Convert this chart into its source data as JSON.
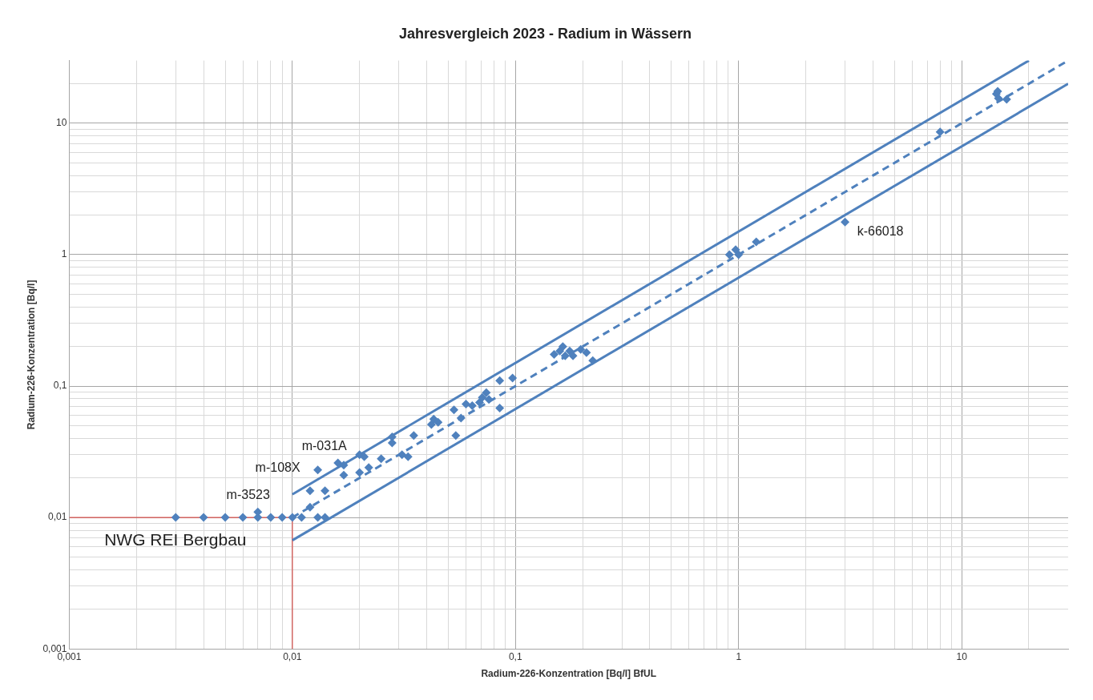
{
  "chart_data": {
    "type": "scatter",
    "title": "Jahresvergleich 2023 - Radium in Wässern",
    "xlabel": "Radium-226-Konzentration [Bq/l] BfUL",
    "ylabel": "Radium-226-Konzentration [Bq/l]",
    "log": "xy",
    "grid": true,
    "legend": false,
    "marker": "diamond",
    "xlim": [
      0.001,
      30
    ],
    "ylim": [
      0.001,
      30
    ],
    "xticks": [
      {
        "value": 0.001,
        "label": "0,001"
      },
      {
        "value": 0.002,
        "label": null
      },
      {
        "value": 0.003,
        "label": null
      },
      {
        "value": 0.004,
        "label": null
      },
      {
        "value": 0.005,
        "label": null
      },
      {
        "value": 0.006,
        "label": null
      },
      {
        "value": 0.007,
        "label": null
      },
      {
        "value": 0.008,
        "label": null
      },
      {
        "value": 0.009,
        "label": null
      },
      {
        "value": 0.01,
        "label": "0,01"
      },
      {
        "value": 0.02,
        "label": null
      },
      {
        "value": 0.03,
        "label": null
      },
      {
        "value": 0.04,
        "label": null
      },
      {
        "value": 0.05,
        "label": null
      },
      {
        "value": 0.06,
        "label": null
      },
      {
        "value": 0.07,
        "label": null
      },
      {
        "value": 0.08,
        "label": null
      },
      {
        "value": 0.09,
        "label": null
      },
      {
        "value": 0.1,
        "label": "0,1"
      },
      {
        "value": 0.2,
        "label": null
      },
      {
        "value": 0.3,
        "label": null
      },
      {
        "value": 0.4,
        "label": null
      },
      {
        "value": 0.5,
        "label": null
      },
      {
        "value": 0.6,
        "label": null
      },
      {
        "value": 0.7,
        "label": null
      },
      {
        "value": 0.8,
        "label": null
      },
      {
        "value": 0.9,
        "label": null
      },
      1,
      {
        "value": 2,
        "label": null
      },
      {
        "value": 3,
        "label": null
      },
      {
        "value": 4,
        "label": null
      },
      {
        "value": 5,
        "label": null
      },
      {
        "value": 6,
        "label": null
      },
      {
        "value": 7,
        "label": null
      },
      {
        "value": 8,
        "label": null
      },
      {
        "value": 9,
        "label": null
      },
      10,
      {
        "value": 20,
        "label": null
      }
    ],
    "yticks": [
      {
        "value": 0.001,
        "label": "0,001"
      },
      {
        "value": 0.002,
        "label": null
      },
      {
        "value": 0.003,
        "label": null
      },
      {
        "value": 0.004,
        "label": null
      },
      {
        "value": 0.005,
        "label": null
      },
      {
        "value": 0.006,
        "label": null
      },
      {
        "value": 0.007,
        "label": null
      },
      {
        "value": 0.008,
        "label": null
      },
      {
        "value": 0.009,
        "label": null
      },
      {
        "value": 0.01,
        "label": "0,01"
      },
      {
        "value": 0.02,
        "label": null
      },
      {
        "value": 0.03,
        "label": null
      },
      {
        "value": 0.04,
        "label": null
      },
      {
        "value": 0.05,
        "label": null
      },
      {
        "value": 0.06,
        "label": null
      },
      {
        "value": 0.07,
        "label": null
      },
      {
        "value": 0.08,
        "label": null
      },
      {
        "value": 0.09,
        "label": null
      },
      {
        "value": 0.1,
        "label": "0,1"
      },
      {
        "value": 0.2,
        "label": null
      },
      {
        "value": 0.3,
        "label": null
      },
      {
        "value": 0.4,
        "label": null
      },
      {
        "value": 0.5,
        "label": null
      },
      {
        "value": 0.6,
        "label": null
      },
      {
        "value": 0.7,
        "label": null
      },
      {
        "value": 0.8,
        "label": null
      },
      {
        "value": 0.9,
        "label": null
      },
      1,
      {
        "value": 2,
        "label": null
      },
      {
        "value": 3,
        "label": null
      },
      {
        "value": 4,
        "label": null
      },
      {
        "value": 5,
        "label": null
      },
      {
        "value": 6,
        "label": null
      },
      {
        "value": 7,
        "label": null
      },
      {
        "value": 8,
        "label": null
      },
      {
        "value": 9,
        "label": null
      },
      10,
      {
        "value": 20,
        "label": null
      }
    ],
    "series": [
      {
        "type": "scatter",
        "color": "#4f81bd",
        "x": [
          0.003,
          0.004,
          0.005,
          0.006,
          0.007,
          0.007,
          0.008,
          0.009,
          0.01,
          0.011,
          0.013,
          0.014,
          0.013,
          0.016,
          0.012,
          0.012,
          0.014,
          0.017,
          0.017,
          0.02,
          0.02,
          0.021,
          0.022,
          0.025,
          0.028,
          0.028,
          0.031,
          0.033,
          0.035,
          0.042,
          0.043,
          0.045,
          0.053,
          0.054,
          0.057,
          0.06,
          0.064,
          0.069,
          0.071,
          0.074,
          0.076,
          0.085,
          0.085,
          0.097,
          0.149,
          0.158,
          0.163,
          0.167,
          0.175,
          0.181,
          0.196,
          0.208,
          0.222,
          0.91,
          0.97,
          1.0,
          1.2,
          3.0,
          8.0,
          14.3,
          14.6,
          15.9,
          14.5
        ],
        "values": [
          0.01,
          0.01,
          0.01,
          0.01,
          0.01,
          0.011,
          0.01,
          0.01,
          0.01,
          0.01,
          0.01,
          0.01,
          0.023,
          0.026,
          0.016,
          0.012,
          0.016,
          0.021,
          0.025,
          0.03,
          0.022,
          0.029,
          0.024,
          0.028,
          0.037,
          0.041,
          0.03,
          0.029,
          0.042,
          0.051,
          0.056,
          0.053,
          0.066,
          0.042,
          0.057,
          0.073,
          0.071,
          0.075,
          0.082,
          0.089,
          0.079,
          0.11,
          0.068,
          0.115,
          0.174,
          0.185,
          0.2,
          0.17,
          0.185,
          0.17,
          0.19,
          0.18,
          0.156,
          1.0,
          1.09,
          1.0,
          1.25,
          1.77,
          8.6,
          16.7,
          15.5,
          15.2,
          17.5
        ]
      },
      {
        "type": "line",
        "color": "#4f81bd",
        "line_style": "dashed",
        "marker": "none",
        "x": [
          0.01,
          30
        ],
        "values": [
          0.01,
          30
        ]
      },
      {
        "type": "line",
        "color": "#4f81bd",
        "line_style": "solid",
        "marker": "none",
        "x": [
          0.01,
          20
        ],
        "values": [
          0.015,
          30
        ]
      },
      {
        "type": "line",
        "color": "#4f81bd",
        "line_style": "solid",
        "marker": "none",
        "x": [
          0.01,
          30
        ],
        "values": [
          0.0067,
          20
        ]
      },
      {
        "type": "line",
        "color": "#d9534f",
        "line_style": "solid",
        "marker": "none",
        "x": [
          0.001,
          0.01,
          0.01
        ],
        "values": [
          0.01,
          0.01,
          0.001
        ]
      }
    ],
    "annotations": [
      {
        "text": "m-031A",
        "x": 0.016,
        "y": 0.026
      },
      {
        "text": "m-108X",
        "x": 0.013,
        "y": 0.023
      },
      {
        "text": "m-3523",
        "x": 0.007,
        "y": 0.011
      },
      {
        "text": "k-66018",
        "x": 3.0,
        "y": 1.77
      },
      {
        "text": "NWG REI Bergbau",
        "x": 0.01,
        "y": 0.01
      }
    ]
  }
}
